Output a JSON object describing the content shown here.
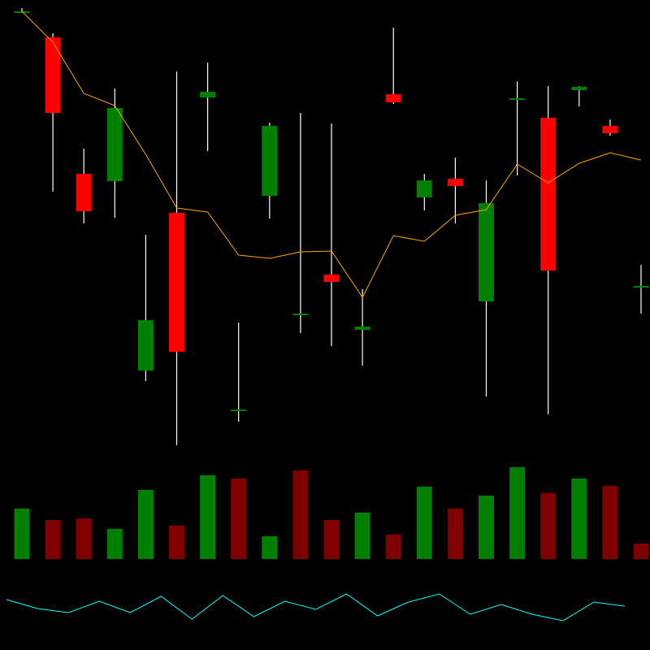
{
  "chart_data": {
    "type": "candlestick",
    "title": "",
    "axes_visible": false,
    "grid": false,
    "colors": {
      "background": "#000000",
      "up_body": "#008000",
      "down_body": "#ff0000",
      "wick": "#ffffff",
      "moving_average": "#ffa500",
      "volume_up": "#008000",
      "volume_down": "#800000",
      "indicator": "#00ffff"
    },
    "candles": [
      {
        "open": 545,
        "close": 546,
        "high": 550,
        "low": 544
      },
      {
        "open": 514,
        "close": 421,
        "high": 519,
        "low": 324
      },
      {
        "open": 346,
        "close": 300,
        "high": 377,
        "low": 285
      },
      {
        "open": 337,
        "close": 427,
        "high": 451,
        "low": 292
      },
      {
        "open": 104,
        "close": 166,
        "high": 271,
        "low": 91
      },
      {
        "open": 298,
        "close": 127,
        "high": 472,
        "low": 12
      },
      {
        "open": 440,
        "close": 447,
        "high": 483,
        "low": 374
      },
      {
        "open": 56,
        "close": 56,
        "high": 163,
        "low": 41
      },
      {
        "open": 319,
        "close": 405,
        "high": 409,
        "low": 291
      },
      {
        "open": 174,
        "close": 174,
        "high": 421,
        "low": 150
      },
      {
        "open": 222,
        "close": 213,
        "high": 408,
        "low": 134
      },
      {
        "open": 154,
        "close": 158,
        "high": 204,
        "low": 110
      },
      {
        "open": 444,
        "close": 434,
        "high": 526,
        "low": 432
      },
      {
        "open": 317,
        "close": 338,
        "high": 346,
        "low": 301
      },
      {
        "open": 340,
        "close": 331,
        "high": 366,
        "low": 285
      },
      {
        "open": 189,
        "close": 310,
        "high": 338,
        "low": 72
      },
      {
        "open": 438,
        "close": 439,
        "high": 460,
        "low": 344
      },
      {
        "open": 415,
        "close": 227,
        "high": 454,
        "low": 50
      },
      {
        "open": 449,
        "close": 453,
        "high": 454,
        "low": 429
      },
      {
        "open": 405,
        "close": 396,
        "high": 413,
        "low": 393
      },
      {
        "open": 208,
        "close": 208,
        "high": 234,
        "low": 174
      }
    ],
    "moving_average": [
      546,
      508,
      445,
      430,
      370,
      304,
      299,
      246,
      242,
      250,
      251,
      194,
      270,
      263,
      295,
      302,
      358,
      335,
      359,
      372,
      363
    ],
    "volume": [
      {
        "value": 62,
        "direction": "up"
      },
      {
        "value": 48,
        "direction": "down"
      },
      {
        "value": 50,
        "direction": "down"
      },
      {
        "value": 37,
        "direction": "up"
      },
      {
        "value": 85,
        "direction": "up"
      },
      {
        "value": 41,
        "direction": "down"
      },
      {
        "value": 103,
        "direction": "up"
      },
      {
        "value": 99,
        "direction": "down"
      },
      {
        "value": 28,
        "direction": "up"
      },
      {
        "value": 109,
        "direction": "down"
      },
      {
        "value": 48,
        "direction": "down"
      },
      {
        "value": 57,
        "direction": "up"
      },
      {
        "value": 30,
        "direction": "down"
      },
      {
        "value": 89,
        "direction": "up"
      },
      {
        "value": 62,
        "direction": "down"
      },
      {
        "value": 78,
        "direction": "up"
      },
      {
        "value": 113,
        "direction": "up"
      },
      {
        "value": 81,
        "direction": "down"
      },
      {
        "value": 99,
        "direction": "up"
      },
      {
        "value": 90,
        "direction": "down"
      },
      {
        "value": 19,
        "direction": "down"
      }
    ],
    "indicator": [
      32,
      21,
      16,
      30,
      16,
      36,
      8,
      37,
      11,
      30,
      20,
      39,
      12,
      29,
      39,
      14,
      26,
      14,
      6,
      29,
      24
    ]
  }
}
